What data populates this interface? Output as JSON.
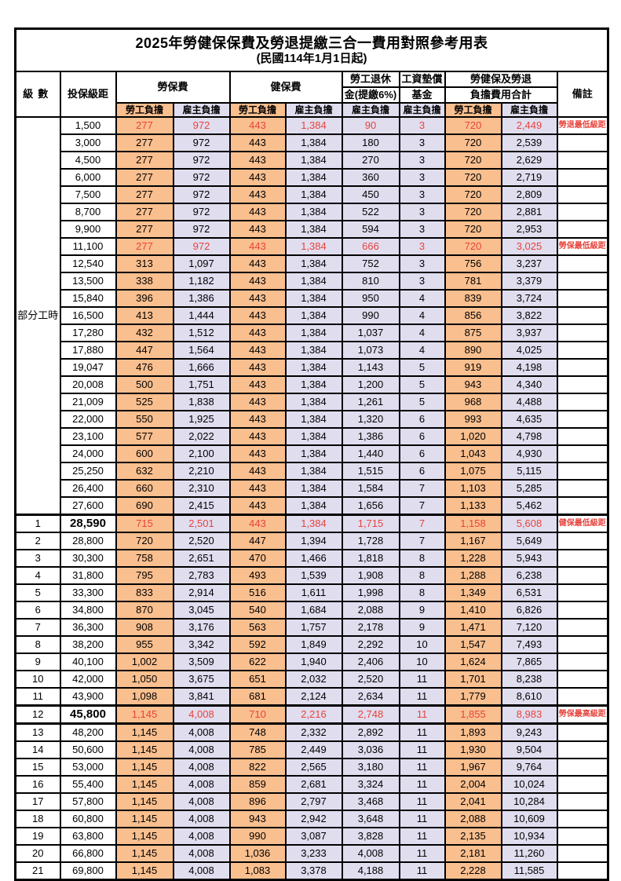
{
  "title": "2025年勞健保保費及勞退提繳三合一費用對照參考用表",
  "subtitle": "(民國114年1月1日起)",
  "colors": {
    "employee_column_bg": "#FABF8F",
    "employer_column_bg": "#E0DDEF",
    "highlight_red_text": "#E8433C",
    "border": "#000000"
  },
  "header": {
    "level": "級數",
    "bracket": "投保級距",
    "labor_insurance": "勞保費",
    "health_insurance": "健保費",
    "pension_line1": "勞工退休",
    "pension_line2": "金(提繳6%)",
    "wage_fund_line1": "工資墊償",
    "wage_fund_line2": "基金",
    "total_line1": "勞健保及勞退",
    "total_line2": "負擔費用合計",
    "remark": "備註",
    "employee_burden": "勞工負擔",
    "employer_burden": "雇主負擔"
  },
  "part_time_label": "部分工時",
  "rows": [
    {
      "level": "",
      "bracket": "1,500",
      "li_emp": "277",
      "li_er": "972",
      "hi_emp": "443",
      "hi_er": "1,384",
      "pension": "90",
      "fund": "3",
      "tot_emp": "720",
      "tot_er": "2,449",
      "remark": "勞退最低級距",
      "red": true
    },
    {
      "level": "",
      "bracket": "3,000",
      "li_emp": "277",
      "li_er": "972",
      "hi_emp": "443",
      "hi_er": "1,384",
      "pension": "180",
      "fund": "3",
      "tot_emp": "720",
      "tot_er": "2,539"
    },
    {
      "level": "",
      "bracket": "4,500",
      "li_emp": "277",
      "li_er": "972",
      "hi_emp": "443",
      "hi_er": "1,384",
      "pension": "270",
      "fund": "3",
      "tot_emp": "720",
      "tot_er": "2,629"
    },
    {
      "level": "",
      "bracket": "6,000",
      "li_emp": "277",
      "li_er": "972",
      "hi_emp": "443",
      "hi_er": "1,384",
      "pension": "360",
      "fund": "3",
      "tot_emp": "720",
      "tot_er": "2,719"
    },
    {
      "level": "",
      "bracket": "7,500",
      "li_emp": "277",
      "li_er": "972",
      "hi_emp": "443",
      "hi_er": "1,384",
      "pension": "450",
      "fund": "3",
      "tot_emp": "720",
      "tot_er": "2,809"
    },
    {
      "level": "",
      "bracket": "8,700",
      "li_emp": "277",
      "li_er": "972",
      "hi_emp": "443",
      "hi_er": "1,384",
      "pension": "522",
      "fund": "3",
      "tot_emp": "720",
      "tot_er": "2,881"
    },
    {
      "level": "",
      "bracket": "9,900",
      "li_emp": "277",
      "li_er": "972",
      "hi_emp": "443",
      "hi_er": "1,384",
      "pension": "594",
      "fund": "3",
      "tot_emp": "720",
      "tot_er": "2,953"
    },
    {
      "level": "",
      "bracket": "11,100",
      "li_emp": "277",
      "li_er": "972",
      "hi_emp": "443",
      "hi_er": "1,384",
      "pension": "666",
      "fund": "3",
      "tot_emp": "720",
      "tot_er": "3,025",
      "remark": "勞保最低級距",
      "red": true
    },
    {
      "level": "",
      "bracket": "12,540",
      "li_emp": "313",
      "li_er": "1,097",
      "hi_emp": "443",
      "hi_er": "1,384",
      "pension": "752",
      "fund": "3",
      "tot_emp": "756",
      "tot_er": "3,237"
    },
    {
      "level": "",
      "bracket": "13,500",
      "li_emp": "338",
      "li_er": "1,182",
      "hi_emp": "443",
      "hi_er": "1,384",
      "pension": "810",
      "fund": "3",
      "tot_emp": "781",
      "tot_er": "3,379"
    },
    {
      "level": "",
      "bracket": "15,840",
      "li_emp": "396",
      "li_er": "1,386",
      "hi_emp": "443",
      "hi_er": "1,384",
      "pension": "950",
      "fund": "4",
      "tot_emp": "839",
      "tot_er": "3,724"
    },
    {
      "level": "",
      "bracket": "16,500",
      "li_emp": "413",
      "li_er": "1,444",
      "hi_emp": "443",
      "hi_er": "1,384",
      "pension": "990",
      "fund": "4",
      "tot_emp": "856",
      "tot_er": "3,822"
    },
    {
      "level": "",
      "bracket": "17,280",
      "li_emp": "432",
      "li_er": "1,512",
      "hi_emp": "443",
      "hi_er": "1,384",
      "pension": "1,037",
      "fund": "4",
      "tot_emp": "875",
      "tot_er": "3,937"
    },
    {
      "level": "",
      "bracket": "17,880",
      "li_emp": "447",
      "li_er": "1,564",
      "hi_emp": "443",
      "hi_er": "1,384",
      "pension": "1,073",
      "fund": "4",
      "tot_emp": "890",
      "tot_er": "4,025"
    },
    {
      "level": "",
      "bracket": "19,047",
      "li_emp": "476",
      "li_er": "1,666",
      "hi_emp": "443",
      "hi_er": "1,384",
      "pension": "1,143",
      "fund": "5",
      "tot_emp": "919",
      "tot_er": "4,198"
    },
    {
      "level": "",
      "bracket": "20,008",
      "li_emp": "500",
      "li_er": "1,751",
      "hi_emp": "443",
      "hi_er": "1,384",
      "pension": "1,200",
      "fund": "5",
      "tot_emp": "943",
      "tot_er": "4,340"
    },
    {
      "level": "",
      "bracket": "21,009",
      "li_emp": "525",
      "li_er": "1,838",
      "hi_emp": "443",
      "hi_er": "1,384",
      "pension": "1,261",
      "fund": "5",
      "tot_emp": "968",
      "tot_er": "4,488"
    },
    {
      "level": "",
      "bracket": "22,000",
      "li_emp": "550",
      "li_er": "1,925",
      "hi_emp": "443",
      "hi_er": "1,384",
      "pension": "1,320",
      "fund": "6",
      "tot_emp": "993",
      "tot_er": "4,635"
    },
    {
      "level": "",
      "bracket": "23,100",
      "li_emp": "577",
      "li_er": "2,022",
      "hi_emp": "443",
      "hi_er": "1,384",
      "pension": "1,386",
      "fund": "6",
      "tot_emp": "1,020",
      "tot_er": "4,798"
    },
    {
      "level": "",
      "bracket": "24,000",
      "li_emp": "600",
      "li_er": "2,100",
      "hi_emp": "443",
      "hi_er": "1,384",
      "pension": "1,440",
      "fund": "6",
      "tot_emp": "1,043",
      "tot_er": "4,930"
    },
    {
      "level": "",
      "bracket": "25,250",
      "li_emp": "632",
      "li_er": "2,210",
      "hi_emp": "443",
      "hi_er": "1,384",
      "pension": "1,515",
      "fund": "6",
      "tot_emp": "1,075",
      "tot_er": "5,115"
    },
    {
      "level": "",
      "bracket": "26,400",
      "li_emp": "660",
      "li_er": "2,310",
      "hi_emp": "443",
      "hi_er": "1,384",
      "pension": "1,584",
      "fund": "7",
      "tot_emp": "1,103",
      "tot_er": "5,285"
    },
    {
      "level": "",
      "bracket": "27,600",
      "li_emp": "690",
      "li_er": "2,415",
      "hi_emp": "443",
      "hi_er": "1,384",
      "pension": "1,656",
      "fund": "7",
      "tot_emp": "1,133",
      "tot_er": "5,462"
    },
    {
      "level": "1",
      "bracket": "28,590",
      "li_emp": "715",
      "li_er": "2,501",
      "hi_emp": "443",
      "hi_er": "1,384",
      "pension": "1,715",
      "fund": "7",
      "tot_emp": "1,158",
      "tot_er": "5,608",
      "remark": "健保最低級距",
      "red": true,
      "bold": true,
      "sep": "top"
    },
    {
      "level": "2",
      "bracket": "28,800",
      "li_emp": "720",
      "li_er": "2,520",
      "hi_emp": "447",
      "hi_er": "1,394",
      "pension": "1,728",
      "fund": "7",
      "tot_emp": "1,167",
      "tot_er": "5,649"
    },
    {
      "level": "3",
      "bracket": "30,300",
      "li_emp": "758",
      "li_er": "2,651",
      "hi_emp": "470",
      "hi_er": "1,466",
      "pension": "1,818",
      "fund": "8",
      "tot_emp": "1,228",
      "tot_er": "5,943"
    },
    {
      "level": "4",
      "bracket": "31,800",
      "li_emp": "795",
      "li_er": "2,783",
      "hi_emp": "493",
      "hi_er": "1,539",
      "pension": "1,908",
      "fund": "8",
      "tot_emp": "1,288",
      "tot_er": "6,238"
    },
    {
      "level": "5",
      "bracket": "33,300",
      "li_emp": "833",
      "li_er": "2,914",
      "hi_emp": "516",
      "hi_er": "1,611",
      "pension": "1,998",
      "fund": "8",
      "tot_emp": "1,349",
      "tot_er": "6,531"
    },
    {
      "level": "6",
      "bracket": "34,800",
      "li_emp": "870",
      "li_er": "3,045",
      "hi_emp": "540",
      "hi_er": "1,684",
      "pension": "2,088",
      "fund": "9",
      "tot_emp": "1,410",
      "tot_er": "6,826"
    },
    {
      "level": "7",
      "bracket": "36,300",
      "li_emp": "908",
      "li_er": "3,176",
      "hi_emp": "563",
      "hi_er": "1,757",
      "pension": "2,178",
      "fund": "9",
      "tot_emp": "1,471",
      "tot_er": "7,120"
    },
    {
      "level": "8",
      "bracket": "38,200",
      "li_emp": "955",
      "li_er": "3,342",
      "hi_emp": "592",
      "hi_er": "1,849",
      "pension": "2,292",
      "fund": "10",
      "tot_emp": "1,547",
      "tot_er": "7,493"
    },
    {
      "level": "9",
      "bracket": "40,100",
      "li_emp": "1,002",
      "li_er": "3,509",
      "hi_emp": "622",
      "hi_er": "1,940",
      "pension": "2,406",
      "fund": "10",
      "tot_emp": "1,624",
      "tot_er": "7,865"
    },
    {
      "level": "10",
      "bracket": "42,000",
      "li_emp": "1,050",
      "li_er": "3,675",
      "hi_emp": "651",
      "hi_er": "2,032",
      "pension": "2,520",
      "fund": "11",
      "tot_emp": "1,701",
      "tot_er": "8,238"
    },
    {
      "level": "11",
      "bracket": "43,900",
      "li_emp": "1,098",
      "li_er": "3,841",
      "hi_emp": "681",
      "hi_er": "2,124",
      "pension": "2,634",
      "fund": "11",
      "tot_emp": "1,779",
      "tot_er": "8,610"
    },
    {
      "level": "12",
      "bracket": "45,800",
      "li_emp": "1,145",
      "li_er": "4,008",
      "hi_emp": "710",
      "hi_er": "2,216",
      "pension": "2,748",
      "fund": "11",
      "tot_emp": "1,855",
      "tot_er": "8,983",
      "remark": "勞保最高級距",
      "red": true,
      "bold": true,
      "sep": "both"
    },
    {
      "level": "13",
      "bracket": "48,200",
      "li_emp": "1,145",
      "li_er": "4,008",
      "hi_emp": "748",
      "hi_er": "2,332",
      "pension": "2,892",
      "fund": "11",
      "tot_emp": "1,893",
      "tot_er": "9,243"
    },
    {
      "level": "14",
      "bracket": "50,600",
      "li_emp": "1,145",
      "li_er": "4,008",
      "hi_emp": "785",
      "hi_er": "2,449",
      "pension": "3,036",
      "fund": "11",
      "tot_emp": "1,930",
      "tot_er": "9,504"
    },
    {
      "level": "15",
      "bracket": "53,000",
      "li_emp": "1,145",
      "li_er": "4,008",
      "hi_emp": "822",
      "hi_er": "2,565",
      "pension": "3,180",
      "fund": "11",
      "tot_emp": "1,967",
      "tot_er": "9,764"
    },
    {
      "level": "16",
      "bracket": "55,400",
      "li_emp": "1,145",
      "li_er": "4,008",
      "hi_emp": "859",
      "hi_er": "2,681",
      "pension": "3,324",
      "fund": "11",
      "tot_emp": "2,004",
      "tot_er": "10,024"
    },
    {
      "level": "17",
      "bracket": "57,800",
      "li_emp": "1,145",
      "li_er": "4,008",
      "hi_emp": "896",
      "hi_er": "2,797",
      "pension": "3,468",
      "fund": "11",
      "tot_emp": "2,041",
      "tot_er": "10,284"
    },
    {
      "level": "18",
      "bracket": "60,800",
      "li_emp": "1,145",
      "li_er": "4,008",
      "hi_emp": "943",
      "hi_er": "2,942",
      "pension": "3,648",
      "fund": "11",
      "tot_emp": "2,088",
      "tot_er": "10,609"
    },
    {
      "level": "19",
      "bracket": "63,800",
      "li_emp": "1,145",
      "li_er": "4,008",
      "hi_emp": "990",
      "hi_er": "3,087",
      "pension": "3,828",
      "fund": "11",
      "tot_emp": "2,135",
      "tot_er": "10,934"
    },
    {
      "level": "20",
      "bracket": "66,800",
      "li_emp": "1,145",
      "li_er": "4,008",
      "hi_emp": "1,036",
      "hi_er": "3,233",
      "pension": "4,008",
      "fund": "11",
      "tot_emp": "2,181",
      "tot_er": "11,260"
    },
    {
      "level": "21",
      "bracket": "69,800",
      "li_emp": "1,145",
      "li_er": "4,008",
      "hi_emp": "1,083",
      "hi_er": "3,378",
      "pension": "4,188",
      "fund": "11",
      "tot_emp": "2,228",
      "tot_er": "11,585"
    }
  ]
}
